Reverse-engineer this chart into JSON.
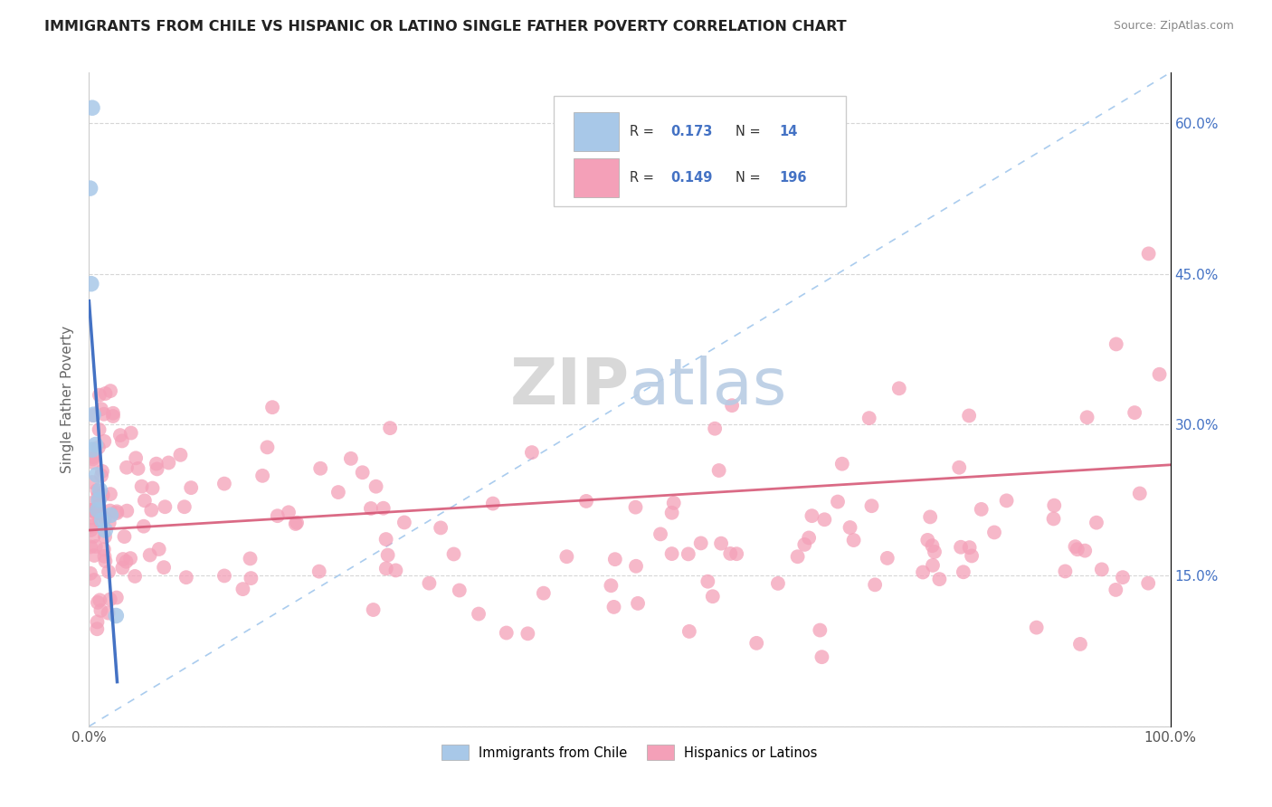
{
  "title": "IMMIGRANTS FROM CHILE VS HISPANIC OR LATINO SINGLE FATHER POVERTY CORRELATION CHART",
  "source": "Source: ZipAtlas.com",
  "ylabel": "Single Father Poverty",
  "xlim": [
    0,
    1
  ],
  "ylim": [
    0,
    0.65
  ],
  "yticks": [
    0.0,
    0.15,
    0.3,
    0.45,
    0.6
  ],
  "xticks": [
    0.0,
    1.0
  ],
  "xtick_labels": [
    "0.0%",
    "100.0%"
  ],
  "ytick_labels": [
    "",
    "15.0%",
    "30.0%",
    "45.0%",
    "60.0%"
  ],
  "blue_color": "#a8c8e8",
  "pink_color": "#f4a0b8",
  "trend_blue_color": "#4472c4",
  "trend_pink_color": "#d45070",
  "legend_r_blue": "0.173",
  "legend_n_blue": "14",
  "legend_r_pink": "0.149",
  "legend_n_pink": "196",
  "watermark_zip": "ZIP",
  "watermark_atlas": "atlas",
  "blue_x": [
    0.001,
    0.002,
    0.003,
    0.004,
    0.006,
    0.007,
    0.008,
    0.009,
    0.01,
    0.012,
    0.015,
    0.02,
    0.025,
    0.003
  ],
  "blue_y": [
    0.535,
    0.44,
    0.275,
    0.31,
    0.28,
    0.25,
    0.215,
    0.225,
    0.235,
    0.205,
    0.195,
    0.21,
    0.11,
    0.615
  ]
}
